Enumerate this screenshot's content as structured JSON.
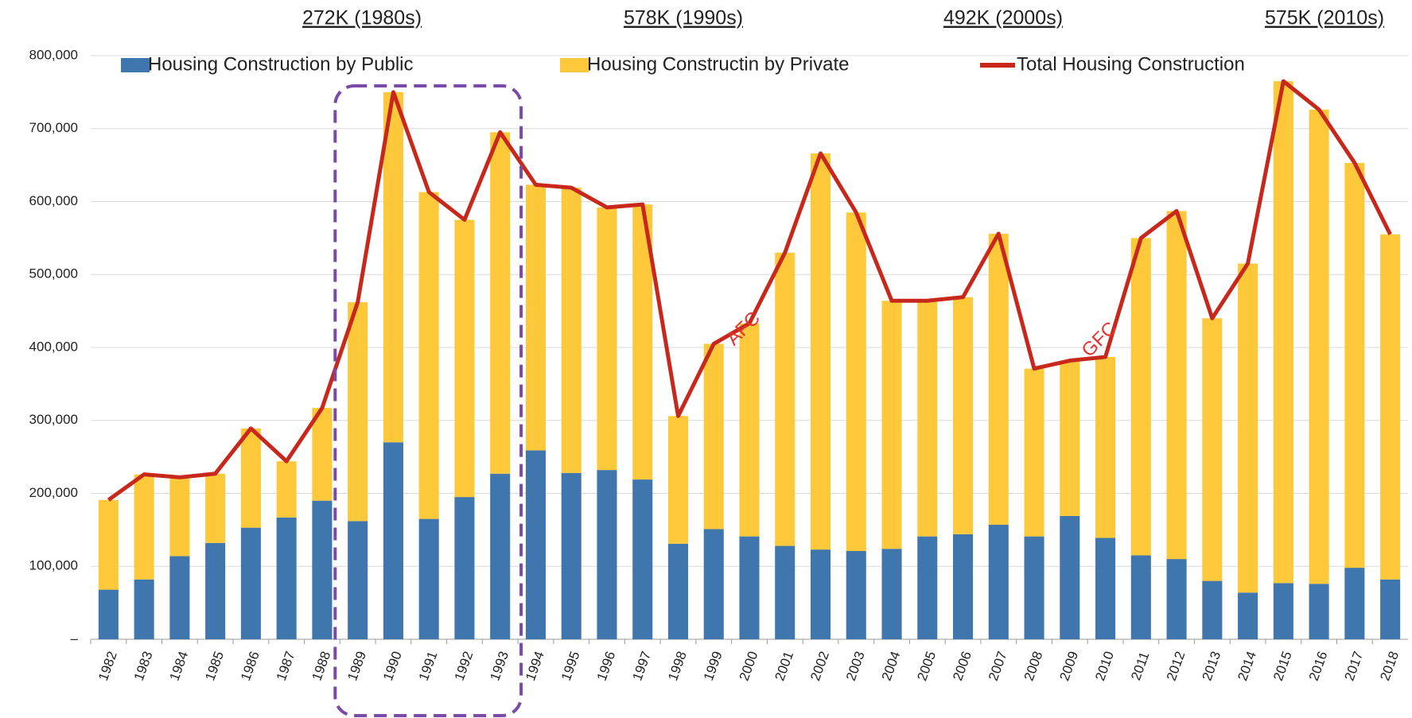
{
  "chart_data": {
    "type": "bar",
    "stacked": true,
    "categories": [
      "1982",
      "1983",
      "1984",
      "1985",
      "1986",
      "1987",
      "1988",
      "1989",
      "1990",
      "1991",
      "1992",
      "1993",
      "1994",
      "1995",
      "1996",
      "1997",
      "1998",
      "1999",
      "2000",
      "2001",
      "2002",
      "2003",
      "2004",
      "2005",
      "2006",
      "2007",
      "2008",
      "2009",
      "2010",
      "2011",
      "2012",
      "2013",
      "2014",
      "2015",
      "2016",
      "2017",
      "2018"
    ],
    "series": [
      {
        "name": "Housing Construction by Public",
        "color": "#3f76ad",
        "type": "bar",
        "values": [
          68000,
          82000,
          114000,
          132000,
          153000,
          167000,
          190000,
          162000,
          270000,
          165000,
          195000,
          227000,
          259000,
          228000,
          232000,
          219000,
          131000,
          151000,
          141000,
          128000,
          123000,
          121000,
          124000,
          141000,
          144000,
          157000,
          141000,
          169000,
          139000,
          115000,
          110000,
          80000,
          64000,
          77000,
          76000,
          98000,
          82000
        ]
      },
      {
        "name": "Housing Constructin by Private",
        "color": "#fdc93a",
        "type": "bar",
        "values": [
          123000,
          144000,
          108000,
          95000,
          136000,
          77000,
          127000,
          300000,
          480000,
          448000,
          380000,
          468000,
          364000,
          391000,
          360000,
          377000,
          175000,
          254000,
          292000,
          402000,
          543000,
          464000,
          340000,
          323000,
          325000,
          399000,
          230000,
          213000,
          248000,
          435000,
          477000,
          360000,
          451000,
          688000,
          650000,
          555000,
          473000
        ]
      },
      {
        "name": "Total Housing Construction",
        "color": "#c8281c",
        "type": "line",
        "values": [
          191000,
          226000,
          222000,
          227000,
          289000,
          244000,
          317000,
          462000,
          750000,
          613000,
          575000,
          695000,
          623000,
          619000,
          592000,
          596000,
          306000,
          405000,
          433000,
          530000,
          666000,
          585000,
          464000,
          464000,
          469000,
          556000,
          371000,
          382000,
          387000,
          550000,
          587000,
          440000,
          515000,
          765000,
          726000,
          653000,
          555000
        ]
      }
    ],
    "ylim": [
      0,
      800000
    ],
    "yticks": [
      {
        "value": 0,
        "label": "–"
      },
      {
        "value": 100000,
        "label": "100,000"
      },
      {
        "value": 200000,
        "label": "200,000"
      },
      {
        "value": 300000,
        "label": "300,000"
      },
      {
        "value": 400000,
        "label": "400,000"
      },
      {
        "value": 500000,
        "label": "500,000"
      },
      {
        "value": 600000,
        "label": "600,000"
      },
      {
        "value": 700000,
        "label": "700,000"
      },
      {
        "value": 800000,
        "label": "800,000"
      }
    ],
    "grid": true,
    "legend": "top",
    "decade_labels": [
      "272K (1980s)",
      "578K (1990s)",
      "492K (2000s)",
      "575K (2010s)"
    ],
    "annotations": [
      "AFC",
      "GFC"
    ]
  }
}
